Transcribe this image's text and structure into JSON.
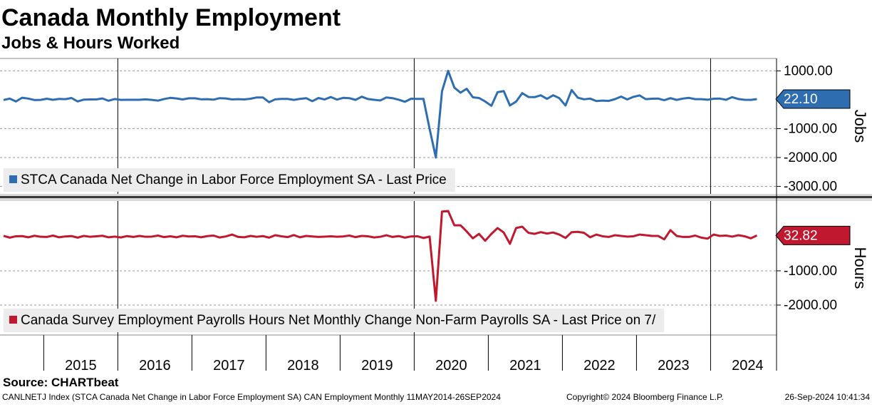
{
  "header": {
    "title": "Canada Monthly Employment",
    "subtitle": "Jobs & Hours Worked"
  },
  "footer": {
    "source": "Source: CHARTbeat",
    "index_note": "CANLNETJ Index (STCA Canada Net Change in Labor Force Employment SA) CAN Employment  Monthly 11MAY2014-26SEP2024",
    "copyright": "Copyright© 2024 Bloomberg Finance L.P.",
    "timestamp": "26-Sep-2024 10:41:34"
  },
  "chart_data": [
    {
      "type": "line",
      "y_label": "Jobs",
      "grid": true,
      "xlim": [
        2014.41,
        2024.89
      ],
      "xticks": [
        2015,
        2016,
        2017,
        2018,
        2019,
        2020,
        2021,
        2022,
        2023,
        2024
      ],
      "ylim": [
        -3260,
        1430
      ],
      "yticks": [
        {
          "value": 1000,
          "label": "1000.00"
        },
        {
          "value": -1000,
          "label": "-1000.00"
        },
        {
          "value": -2000,
          "label": "-2000.00"
        },
        {
          "value": -3000,
          "label": "-3000.00"
        }
      ],
      "x": [
        2014.458,
        2014.542,
        2014.625,
        2014.708,
        2014.792,
        2014.875,
        2014.958,
        2015.042,
        2015.125,
        2015.208,
        2015.292,
        2015.375,
        2015.458,
        2015.542,
        2015.625,
        2015.708,
        2015.792,
        2015.875,
        2015.958,
        2016.042,
        2016.125,
        2016.208,
        2016.292,
        2016.375,
        2016.458,
        2016.542,
        2016.625,
        2016.708,
        2016.792,
        2016.875,
        2016.958,
        2017.042,
        2017.125,
        2017.208,
        2017.292,
        2017.375,
        2017.458,
        2017.542,
        2017.625,
        2017.708,
        2017.792,
        2017.875,
        2017.958,
        2018.042,
        2018.125,
        2018.208,
        2018.292,
        2018.375,
        2018.458,
        2018.542,
        2018.625,
        2018.708,
        2018.792,
        2018.875,
        2018.958,
        2019.042,
        2019.125,
        2019.208,
        2019.292,
        2019.375,
        2019.458,
        2019.542,
        2019.625,
        2019.708,
        2019.792,
        2019.875,
        2019.958,
        2020.042,
        2020.125,
        2020.208,
        2020.292,
        2020.375,
        2020.458,
        2020.542,
        2020.625,
        2020.708,
        2020.792,
        2020.875,
        2020.958,
        2021.042,
        2021.125,
        2021.208,
        2021.292,
        2021.375,
        2021.458,
        2021.542,
        2021.625,
        2021.708,
        2021.792,
        2021.875,
        2021.958,
        2022.042,
        2022.125,
        2022.208,
        2022.292,
        2022.375,
        2022.458,
        2022.542,
        2022.625,
        2022.708,
        2022.792,
        2022.875,
        2022.958,
        2023.042,
        2023.125,
        2023.208,
        2023.292,
        2023.375,
        2023.458,
        2023.542,
        2023.625,
        2023.708,
        2023.792,
        2023.875,
        2023.958,
        2024.042,
        2024.125,
        2024.208,
        2024.292,
        2024.375,
        2024.458,
        2024.542,
        2024.625
      ],
      "series": [
        {
          "name": "STCA Canada Net Change in Labor Force Employment SA - Last Price",
          "color": "#2e6db0",
          "last_value_label": "22.10",
          "values": [
            -10,
            40,
            -60,
            70,
            40,
            -10,
            -5,
            35,
            -1,
            30,
            20,
            60,
            -60,
            5,
            10,
            10,
            45,
            -35,
            25,
            -5,
            -2,
            -2,
            -2,
            15,
            -5,
            -30,
            25,
            65,
            45,
            10,
            50,
            50,
            15,
            20,
            3,
            55,
            45,
            10,
            20,
            10,
            35,
            80,
            80,
            -85,
            15,
            30,
            30,
            -5,
            30,
            55,
            -50,
            60,
            10,
            95,
            5,
            65,
            55,
            -5,
            105,
            25,
            -2,
            -25,
            80,
            55,
            0,
            -70,
            35,
            30,
            30,
            -1010,
            -2000,
            290,
            1000,
            420,
            245,
            380,
            85,
            60,
            -60,
            -210,
            260,
            300,
            -200,
            -65,
            230,
            95,
            90,
            155,
            30,
            155,
            55,
            -200,
            335,
            70,
            15,
            40,
            -45,
            -30,
            -40,
            20,
            110,
            10,
            100,
            150,
            20,
            35,
            40,
            -15,
            55,
            -5,
            40,
            65,
            20,
            20,
            0,
            35,
            40,
            -2,
            90,
            25,
            -1,
            -5,
            22.1
          ]
        }
      ]
    },
    {
      "type": "line",
      "y_label": "Hours",
      "grid": true,
      "xlim": [
        2014.41,
        2024.89
      ],
      "xticks": [
        2015,
        2016,
        2017,
        2018,
        2019,
        2020,
        2021,
        2022,
        2023,
        2024
      ],
      "ylim": [
        -2875,
        1040
      ],
      "yticks": [
        {
          "value": -1000,
          "label": "-1000.00"
        },
        {
          "value": -2000,
          "label": "-2000.00"
        }
      ],
      "x": [
        2014.458,
        2014.542,
        2014.625,
        2014.708,
        2014.792,
        2014.875,
        2014.958,
        2015.042,
        2015.125,
        2015.208,
        2015.292,
        2015.375,
        2015.458,
        2015.542,
        2015.625,
        2015.708,
        2015.792,
        2015.875,
        2015.958,
        2016.042,
        2016.125,
        2016.208,
        2016.292,
        2016.375,
        2016.458,
        2016.542,
        2016.625,
        2016.708,
        2016.792,
        2016.875,
        2016.958,
        2017.042,
        2017.125,
        2017.208,
        2017.292,
        2017.375,
        2017.458,
        2017.542,
        2017.625,
        2017.708,
        2017.792,
        2017.875,
        2017.958,
        2018.042,
        2018.125,
        2018.208,
        2018.292,
        2018.375,
        2018.458,
        2018.542,
        2018.625,
        2018.708,
        2018.792,
        2018.875,
        2018.958,
        2019.042,
        2019.125,
        2019.208,
        2019.292,
        2019.375,
        2019.458,
        2019.542,
        2019.625,
        2019.708,
        2019.792,
        2019.875,
        2019.958,
        2020.042,
        2020.125,
        2020.208,
        2020.292,
        2020.375,
        2020.458,
        2020.542,
        2020.625,
        2020.708,
        2020.792,
        2020.875,
        2020.958,
        2021.042,
        2021.125,
        2021.208,
        2021.292,
        2021.375,
        2021.458,
        2021.542,
        2021.625,
        2021.708,
        2021.792,
        2021.875,
        2021.958,
        2022.042,
        2022.125,
        2022.208,
        2022.292,
        2022.375,
        2022.458,
        2022.542,
        2022.625,
        2022.708,
        2022.792,
        2022.875,
        2022.958,
        2023.042,
        2023.125,
        2023.208,
        2023.292,
        2023.375,
        2023.458,
        2023.542,
        2023.625,
        2023.708,
        2023.792,
        2023.875,
        2023.958,
        2024.042,
        2024.125,
        2024.208,
        2024.292,
        2024.375,
        2024.458,
        2024.542,
        2024.625
      ],
      "series": [
        {
          "name": "Canada Survey Employment Payrolls Hours Net Monthly Change Non-Farm Payrolls SA - Last Price on 7/",
          "color": "#c0192f",
          "values": [
            20,
            -30,
            10,
            15,
            -20,
            25,
            -5,
            -10,
            30,
            -20,
            5,
            15,
            -30,
            20,
            -5,
            10,
            25,
            -20,
            0,
            -25,
            15,
            -10,
            20,
            -5,
            0,
            30,
            -15,
            10,
            -20,
            25,
            5,
            10,
            -20,
            15,
            30,
            -25,
            5,
            60,
            -10,
            -20,
            20,
            -5,
            15,
            -30,
            40,
            10,
            -15,
            45,
            -20,
            20,
            5,
            -10,
            0,
            10,
            -5,
            5,
            30,
            -15,
            20,
            10,
            -25,
            -5,
            40,
            -10,
            15,
            -30,
            5,
            10,
            -40,
            0,
            -1875,
            730,
            750,
            330,
            330,
            150,
            -50,
            80,
            -120,
            80,
            250,
            120,
            -210,
            250,
            290,
            110,
            80,
            130,
            90,
            120,
            60,
            -40,
            130,
            140,
            110,
            -20,
            60,
            10,
            -10,
            40,
            20,
            0,
            10,
            60,
            40,
            20,
            20,
            -80,
            190,
            20,
            -10,
            -10,
            30,
            -30,
            -60,
            60,
            20,
            30,
            0,
            40,
            10,
            -50,
            32.82
          ]
        }
      ]
    }
  ]
}
